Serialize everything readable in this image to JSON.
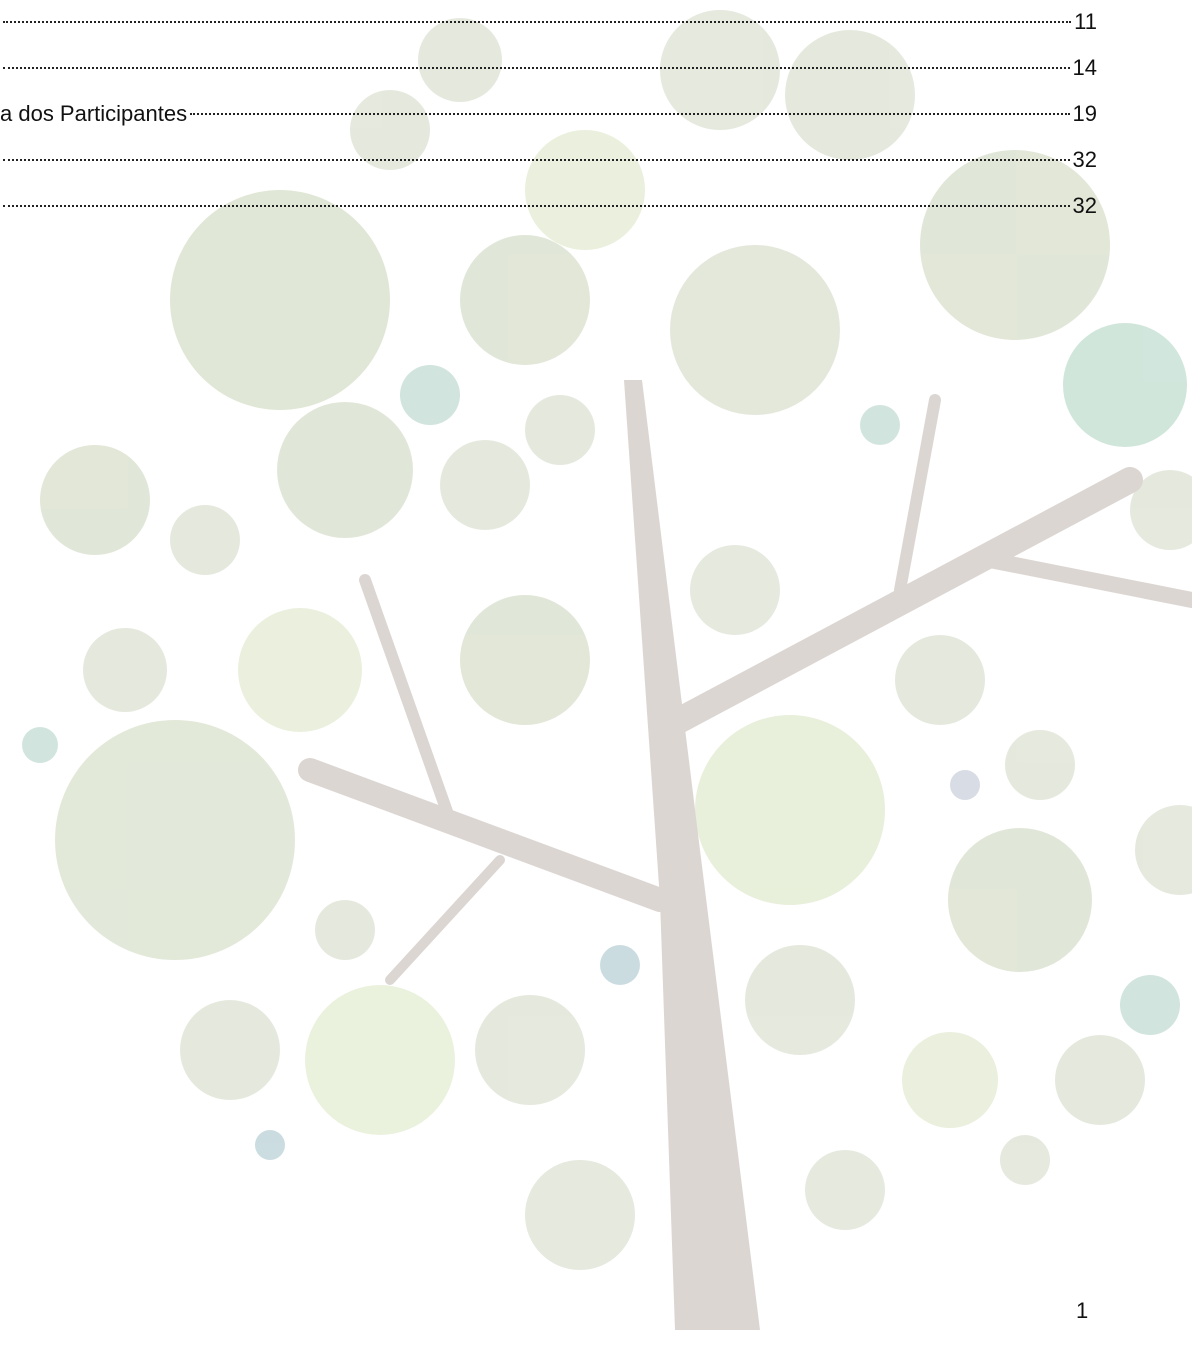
{
  "toc": {
    "entries": [
      {
        "page": 11
      },
      {
        "page": 14
      },
      {
        "title": "a dos Participantes",
        "page": 19
      },
      {
        "page": 32
      },
      {
        "page": 32
      }
    ]
  },
  "footer": {
    "page_number": 1
  }
}
